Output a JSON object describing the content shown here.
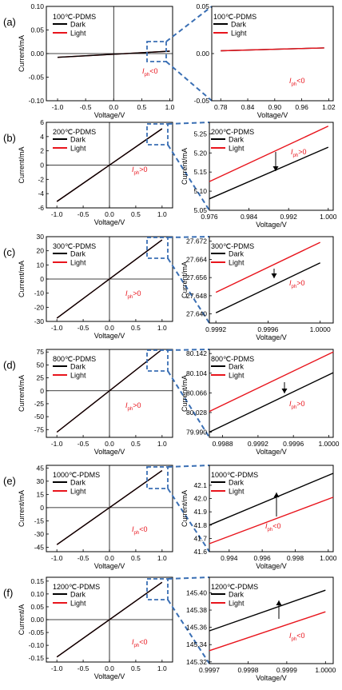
{
  "colors": {
    "dark": "#000000",
    "light": "#e8141c",
    "annotation": "#e8141c",
    "zoom": "#3a6fb4"
  },
  "chart_data": [
    {
      "id": "a-main",
      "panel_label": "(a)",
      "type": "line",
      "title": "100℃-PDMS",
      "xlabel": "Voltage/V",
      "ylabel": "Current/mA",
      "xlim": [
        -1.2,
        1.05
      ],
      "ylim": [
        -0.1,
        0.1
      ],
      "xticks": [
        "-1.0",
        "-0.5",
        "0.0",
        "0.5",
        "1.0"
      ],
      "yticks": [
        "-0.10",
        "-0.05",
        "0.00",
        "0.05",
        "0.10"
      ],
      "series": [
        {
          "name": "Dark",
          "x": [
            -1,
            1
          ],
          "y": [
            -0.008,
            0.005
          ]
        },
        {
          "name": "Light",
          "x": [
            -1,
            1
          ],
          "y": [
            -0.008,
            0.005
          ]
        }
      ],
      "annotation": {
        "base": "I",
        "sub": "ph",
        "rel": "<0"
      }
    },
    {
      "id": "a-zoom",
      "type": "line",
      "title": "100℃-PDMS",
      "xlabel": "Voltage/V",
      "ylabel": "",
      "xlim": [
        0.76,
        1.03
      ],
      "ylim": [
        -0.05,
        0.05
      ],
      "xticks": [
        "0.78",
        "0.84",
        "0.90",
        "0.96",
        "1.02"
      ],
      "yticks": [
        "-0.05",
        "0.00",
        "0.05"
      ],
      "series": [
        {
          "name": "Dark",
          "x": [
            0.78,
            1.01
          ],
          "y": [
            0.003,
            0.006
          ]
        },
        {
          "name": "Light",
          "x": [
            0.78,
            1.01
          ],
          "y": [
            0.003,
            0.006
          ]
        }
      ],
      "annotation": {
        "base": "I",
        "sub": "ph",
        "rel": "<0"
      }
    },
    {
      "id": "b-main",
      "panel_label": "(b)",
      "type": "line",
      "title": "200℃-PDMS",
      "xlabel": "Voltage/V",
      "ylabel": "Current/mA",
      "xlim": [
        -1.2,
        1.2
      ],
      "ylim": [
        -6,
        6
      ],
      "xticks": [
        "-1.0",
        "-0.5",
        "0.0",
        "0.5",
        "1.0"
      ],
      "yticks": [
        "-6",
        "-4",
        "-2",
        "0",
        "2",
        "4",
        "6"
      ],
      "series": [
        {
          "name": "Dark",
          "x": [
            -1,
            1
          ],
          "y": [
            -5.1,
            5.1
          ]
        },
        {
          "name": "Light",
          "x": [
            -1,
            1
          ],
          "y": [
            -5.1,
            5.1
          ]
        }
      ],
      "annotation": {
        "base": "I",
        "sub": "ph",
        "rel": ">0"
      }
    },
    {
      "id": "b-zoom",
      "type": "line",
      "title": "200℃-PDMS",
      "xlabel": "Voltage/V",
      "ylabel": "Current/mA",
      "xlim": [
        0.976,
        1.001
      ],
      "ylim": [
        5.05,
        5.28
      ],
      "xticks": [
        "0.976",
        "0.984",
        "0.992",
        "1.000"
      ],
      "yticks": [
        "5.05",
        "5.10",
        "5.15",
        "5.20",
        "5.25"
      ],
      "series": [
        {
          "name": "Dark",
          "x": [
            0.976,
            1.0
          ],
          "y": [
            5.08,
            5.215
          ]
        },
        {
          "name": "Light",
          "x": [
            0.976,
            1.0
          ],
          "y": [
            5.125,
            5.27
          ]
        }
      ],
      "annotation": {
        "base": "I",
        "sub": "ph",
        "rel": ">0"
      }
    },
    {
      "id": "c-main",
      "panel_label": "(c)",
      "type": "line",
      "title": "300℃-PDMS",
      "xlabel": "Voltage/V",
      "ylabel": "Current/mA",
      "xlim": [
        -1.2,
        1.2
      ],
      "ylim": [
        -30,
        30
      ],
      "xticks": [
        "-1.0",
        "-0.5",
        "0.0",
        "0.5",
        "1.0"
      ],
      "yticks": [
        "-30",
        "-20",
        "-10",
        "0",
        "10",
        "20",
        "30"
      ],
      "series": [
        {
          "name": "Dark",
          "x": [
            -1,
            1
          ],
          "y": [
            -27.67,
            27.67
          ]
        },
        {
          "name": "Light",
          "x": [
            -1,
            1
          ],
          "y": [
            -27.67,
            27.67
          ]
        }
      ],
      "annotation": {
        "base": "I",
        "sub": "ph",
        "rel": ">0"
      }
    },
    {
      "id": "c-zoom",
      "type": "line",
      "title": "300℃-PDMS",
      "xlabel": "Voltage/V",
      "ylabel": "Current/mA",
      "xlim": [
        0.99915,
        1.0001
      ],
      "ylim": [
        27.636,
        27.674
      ],
      "xticks": [
        "0.9992",
        "0.9996",
        "1.0000"
      ],
      "yticks": [
        "27.640",
        "27.648",
        "27.656",
        "27.664",
        "27.672"
      ],
      "series": [
        {
          "name": "Dark",
          "x": [
            0.9992,
            1.0
          ],
          "y": [
            27.6405,
            27.6625
          ]
        },
        {
          "name": "Light",
          "x": [
            0.9992,
            1.0
          ],
          "y": [
            27.6495,
            27.6715
          ]
        }
      ],
      "annotation": {
        "base": "I",
        "sub": "ph",
        "rel": ">0"
      }
    },
    {
      "id": "d-main",
      "panel_label": "(d)",
      "type": "line",
      "title": "800℃-PDMS",
      "xlabel": "Voltage/V",
      "ylabel": "Current/mA",
      "xlim": [
        -1.2,
        1.2
      ],
      "ylim": [
        -90,
        80
      ],
      "xticks": [
        "-1.0",
        "-0.5",
        "0.0",
        "0.5",
        "1.0"
      ],
      "yticks": [
        "-75",
        "-50",
        "-25",
        "0",
        "25",
        "50",
        "75"
      ],
      "series": [
        {
          "name": "Dark",
          "x": [
            -1,
            1
          ],
          "y": [
            -80,
            80
          ]
        },
        {
          "name": "Light",
          "x": [
            -1,
            1
          ],
          "y": [
            -80,
            80
          ]
        }
      ],
      "annotation": {
        "base": "I",
        "sub": "ph",
        "rel": ">0"
      }
    },
    {
      "id": "d-zoom",
      "type": "line",
      "title": "800℃-PDMS",
      "xlabel": "Voltage/V",
      "ylabel": "Current/mA",
      "xlim": [
        0.99865,
        1.00005
      ],
      "ylim": [
        79.98,
        80.15
      ],
      "xticks": [
        "0.9988",
        "0.9992",
        "0.9996",
        "1.0000"
      ],
      "yticks": [
        "79.990",
        "80.028",
        "80.066",
        "80.104",
        "80.142"
      ],
      "series": [
        {
          "name": "Dark",
          "x": [
            0.99865,
            1.00005
          ],
          "y": [
            79.99,
            80.105
          ]
        },
        {
          "name": "Light",
          "x": [
            0.99865,
            1.00005
          ],
          "y": [
            80.03,
            80.145
          ]
        }
      ],
      "annotation": {
        "base": "I",
        "sub": "ph",
        "rel": ">0"
      }
    },
    {
      "id": "e-main",
      "panel_label": "(e)",
      "type": "line",
      "title": "1000℃-PDMS",
      "xlabel": "Voltage/V",
      "ylabel": "Current/mA",
      "xlim": [
        -1.2,
        1.2
      ],
      "ylim": [
        -50,
        48
      ],
      "xticks": [
        "-1.0",
        "-0.5",
        "0.0",
        "0.5",
        "1.0"
      ],
      "yticks": [
        "-45",
        "-30",
        "-15",
        "0",
        "15",
        "30",
        "45"
      ],
      "series": [
        {
          "name": "Dark",
          "x": [
            -1,
            1
          ],
          "y": [
            -42,
            42
          ]
        },
        {
          "name": "Light",
          "x": [
            -1,
            1
          ],
          "y": [
            -42,
            42
          ]
        }
      ],
      "annotation": {
        "base": "I",
        "sub": "ph",
        "rel": "<0"
      }
    },
    {
      "id": "e-zoom",
      "type": "line",
      "title": "1000℃-PDMS",
      "xlabel": "Voltage/V",
      "ylabel": "Current/mA",
      "xlim": [
        0.9928,
        1.0003
      ],
      "ylim": [
        41.6,
        42.25
      ],
      "xticks": [
        "0.994",
        "0.996",
        "0.998",
        "1.000"
      ],
      "yticks": [
        "41.6",
        "41.7",
        "41.8",
        "41.9",
        "42.0",
        "42.1"
      ],
      "series": [
        {
          "name": "Dark",
          "x": [
            0.9928,
            1.0003
          ],
          "y": [
            41.8,
            42.19
          ]
        },
        {
          "name": "Light",
          "x": [
            0.9928,
            1.0003
          ],
          "y": [
            41.66,
            42.01
          ]
        }
      ],
      "annotation": {
        "base": "I",
        "sub": "ph",
        "rel": "<0"
      }
    },
    {
      "id": "f-main",
      "panel_label": "(f)",
      "type": "line",
      "title": "1200℃-PDMS",
      "xlabel": "Voltage/V",
      "ylabel": "Current/A",
      "xlim": [
        -1.2,
        1.2
      ],
      "ylim": [
        -0.165,
        0.165
      ],
      "xticks": [
        "-1.0",
        "-0.5",
        "0.0",
        "0.5",
        "1.0"
      ],
      "yticks": [
        "-0.15",
        "-0.10",
        "-0.05",
        "0.00",
        "0.05",
        "0.10",
        "0.15"
      ],
      "series": [
        {
          "name": "Dark",
          "x": [
            -1,
            1
          ],
          "y": [
            -0.1454,
            0.1454
          ]
        },
        {
          "name": "Light",
          "x": [
            -1,
            1
          ],
          "y": [
            -0.1454,
            0.1454
          ]
        }
      ],
      "annotation": {
        "base": "I",
        "sub": "ph",
        "rel": "<0"
      }
    },
    {
      "id": "f-zoom",
      "type": "line",
      "title": "1200℃-PDMS",
      "xlabel": "Voltage/V",
      "ylabel": "",
      "xlim": [
        0.9997,
        1.00002
      ],
      "ylim": [
        145.318,
        145.418
      ],
      "xticks": [
        "0.9997",
        "0.9998",
        "0.9999",
        "1.0000"
      ],
      "yticks": [
        "145.32",
        "145.34",
        "145.36",
        "145.38",
        "145.40"
      ],
      "series": [
        {
          "name": "Dark",
          "x": [
            0.9997,
            1.0
          ],
          "y": [
            145.356,
            145.403
          ]
        },
        {
          "name": "Light",
          "x": [
            0.9997,
            1.0
          ],
          "y": [
            145.333,
            145.378
          ]
        }
      ],
      "annotation": {
        "base": "I",
        "sub": "ph",
        "rel": "<0"
      }
    }
  ]
}
